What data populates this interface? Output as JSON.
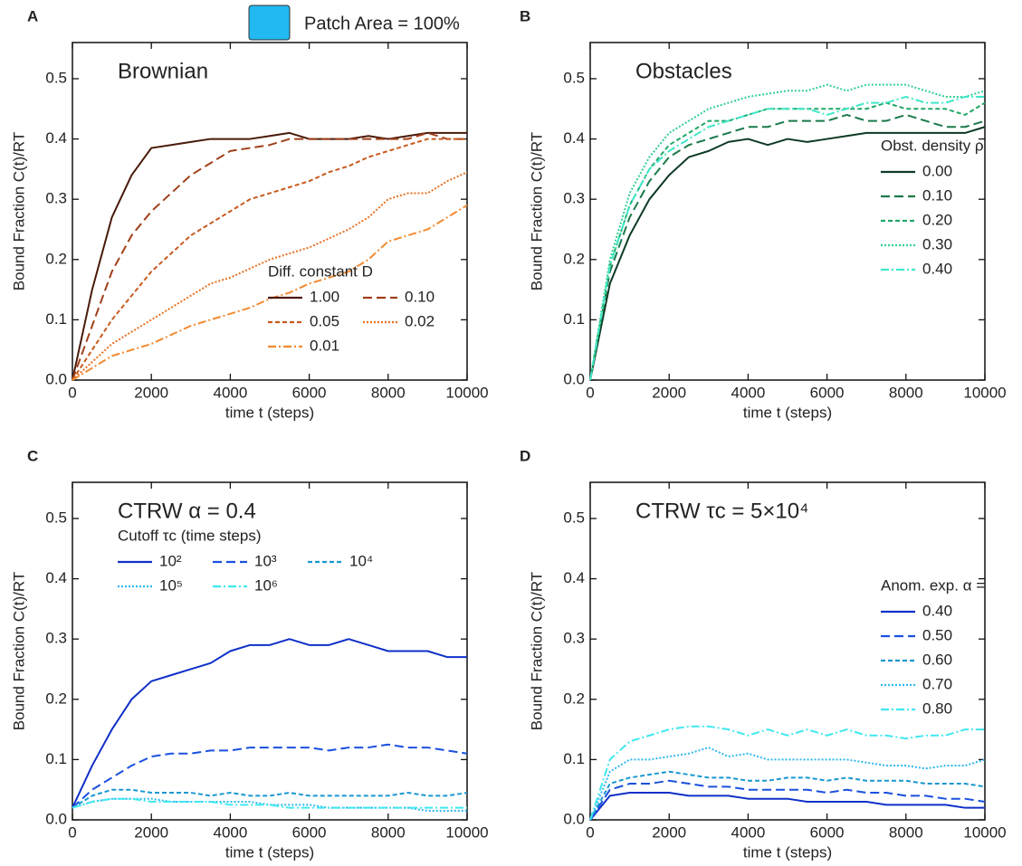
{
  "header": {
    "legend_label": "Patch Area = 100%",
    "legend_color": "#22b8f0"
  },
  "chart_data": [
    {
      "type": "line",
      "panel": "A",
      "title": "Brownian",
      "title_color": "#e8731e",
      "xlabel": "time t (steps)",
      "ylabel": "Bound Fraction C(t)/RT",
      "xlim": [
        0,
        10000
      ],
      "xticks": [
        0,
        2000,
        4000,
        6000,
        8000,
        10000
      ],
      "ylim": [
        0,
        0.56
      ],
      "yticks": [
        {
          "value": 0,
          "label": "0.0"
        },
        0.1,
        0.2,
        0.3,
        0.4,
        0.5
      ],
      "legend": "lower right",
      "legend_title": "Diff. constant D",
      "legend_columns": 2,
      "x": [
        0,
        500,
        1000,
        1500,
        2000,
        2500,
        3000,
        3500,
        4000,
        4500,
        5000,
        5500,
        6000,
        6500,
        7000,
        7500,
        8000,
        8500,
        9000,
        9500,
        10000
      ],
      "series": [
        {
          "name": "1.00",
          "color": "#4a1a0a",
          "dash": "solid",
          "values": [
            0,
            0.15,
            0.27,
            0.34,
            0.385,
            0.39,
            0.395,
            0.4,
            0.4,
            0.4,
            0.405,
            0.41,
            0.4,
            0.4,
            0.4,
            0.405,
            0.4,
            0.405,
            0.41,
            0.41,
            0.41
          ]
        },
        {
          "name": "0.10",
          "color": "#a0401a",
          "dash": "dashed",
          "values": [
            0,
            0.09,
            0.18,
            0.24,
            0.28,
            0.31,
            0.34,
            0.36,
            0.38,
            0.385,
            0.39,
            0.4,
            0.4,
            0.4,
            0.4,
            0.4,
            0.4,
            0.4,
            0.41,
            0.4,
            0.4
          ]
        },
        {
          "name": "0.05",
          "color": "#c85a1e",
          "dash": "short-dashed",
          "values": [
            0,
            0.05,
            0.1,
            0.14,
            0.18,
            0.21,
            0.24,
            0.26,
            0.28,
            0.3,
            0.31,
            0.32,
            0.33,
            0.345,
            0.355,
            0.37,
            0.38,
            0.39,
            0.4,
            0.4,
            0.4
          ]
        },
        {
          "name": "0.02",
          "color": "#e86f1e",
          "dash": "dotted",
          "values": [
            0,
            0.03,
            0.06,
            0.08,
            0.1,
            0.12,
            0.14,
            0.16,
            0.17,
            0.185,
            0.2,
            0.21,
            0.22,
            0.235,
            0.25,
            0.27,
            0.3,
            0.31,
            0.31,
            0.33,
            0.345
          ]
        },
        {
          "name": "0.01",
          "color": "#f28a30",
          "dash": "dash-dot",
          "values": [
            0,
            0.02,
            0.04,
            0.05,
            0.06,
            0.075,
            0.09,
            0.1,
            0.11,
            0.12,
            0.135,
            0.145,
            0.16,
            0.17,
            0.18,
            0.2,
            0.23,
            0.24,
            0.25,
            0.27,
            0.29
          ]
        }
      ]
    },
    {
      "type": "line",
      "panel": "B",
      "title": "Obstacles",
      "title_color": "#1a8a50",
      "xlabel": "time t (steps)",
      "ylabel": "Bound Fraction C(t)/RT",
      "xlim": [
        0,
        10000
      ],
      "xticks": [
        0,
        2000,
        4000,
        6000,
        8000,
        10000
      ],
      "ylim": [
        0,
        0.56
      ],
      "yticks": [
        {
          "value": 0,
          "label": "0.0"
        },
        0.1,
        0.2,
        0.3,
        0.4,
        0.5
      ],
      "legend": "center right",
      "legend_title": "Obst. density ρ",
      "legend_columns": 1,
      "x": [
        0,
        500,
        1000,
        1500,
        2000,
        2500,
        3000,
        3500,
        4000,
        4500,
        5000,
        5500,
        6000,
        6500,
        7000,
        7500,
        8000,
        8500,
        9000,
        9500,
        10000
      ],
      "series": [
        {
          "name": "0.00",
          "color": "#0d3a24",
          "dash": "solid",
          "values": [
            0,
            0.16,
            0.24,
            0.3,
            0.34,
            0.37,
            0.38,
            0.395,
            0.4,
            0.39,
            0.4,
            0.395,
            0.4,
            0.405,
            0.41,
            0.41,
            0.41,
            0.41,
            0.41,
            0.41,
            0.42
          ]
        },
        {
          "name": "0.10",
          "color": "#1a7a4a",
          "dash": "dashed",
          "values": [
            0,
            0.18,
            0.27,
            0.33,
            0.37,
            0.39,
            0.4,
            0.41,
            0.42,
            0.42,
            0.43,
            0.43,
            0.43,
            0.44,
            0.43,
            0.43,
            0.44,
            0.43,
            0.42,
            0.42,
            0.43
          ]
        },
        {
          "name": "0.20",
          "color": "#20a868",
          "dash": "short-dashed",
          "values": [
            0,
            0.19,
            0.29,
            0.35,
            0.39,
            0.41,
            0.43,
            0.43,
            0.44,
            0.45,
            0.45,
            0.45,
            0.45,
            0.45,
            0.45,
            0.46,
            0.45,
            0.45,
            0.45,
            0.44,
            0.46
          ]
        },
        {
          "name": "0.30",
          "color": "#30d090",
          "dash": "dotted",
          "values": [
            0,
            0.2,
            0.31,
            0.37,
            0.41,
            0.43,
            0.45,
            0.46,
            0.47,
            0.475,
            0.48,
            0.48,
            0.49,
            0.48,
            0.49,
            0.49,
            0.49,
            0.48,
            0.47,
            0.47,
            0.48
          ]
        },
        {
          "name": "0.40",
          "color": "#40e8c8",
          "dash": "dash-dot",
          "values": [
            0,
            0.19,
            0.29,
            0.35,
            0.38,
            0.4,
            0.42,
            0.43,
            0.44,
            0.45,
            0.45,
            0.45,
            0.44,
            0.45,
            0.46,
            0.46,
            0.47,
            0.46,
            0.46,
            0.47,
            0.47
          ]
        }
      ]
    },
    {
      "type": "line",
      "panel": "C",
      "title": "CTRW α = 0.4",
      "title_color": "#1a4ae0",
      "xlabel": "time t (steps)",
      "ylabel": "Bound Fraction C(t)/RT",
      "xlim": [
        0,
        10000
      ],
      "xticks": [
        0,
        2000,
        4000,
        6000,
        8000,
        10000
      ],
      "ylim": [
        0,
        0.56
      ],
      "yticks": [
        {
          "value": 0,
          "label": "0.0"
        },
        0.1,
        0.2,
        0.3,
        0.4,
        0.5
      ],
      "legend": "upper left",
      "legend_title": "Cutoff τc (time steps)",
      "legend_columns": 3,
      "x": [
        0,
        500,
        1000,
        1500,
        2000,
        2500,
        3000,
        3500,
        4000,
        4500,
        5000,
        5500,
        6000,
        6500,
        7000,
        7500,
        8000,
        8500,
        9000,
        9500,
        10000
      ],
      "series": [
        {
          "name": "10²",
          "color": "#1030c8",
          "dash": "solid",
          "values": [
            0.02,
            0.09,
            0.15,
            0.2,
            0.23,
            0.24,
            0.25,
            0.26,
            0.28,
            0.29,
            0.29,
            0.3,
            0.29,
            0.29,
            0.3,
            0.29,
            0.28,
            0.28,
            0.28,
            0.27,
            0.27
          ]
        },
        {
          "name": "10³",
          "color": "#1a50e0",
          "dash": "dashed",
          "values": [
            0.02,
            0.05,
            0.07,
            0.09,
            0.105,
            0.11,
            0.11,
            0.115,
            0.115,
            0.12,
            0.12,
            0.12,
            0.12,
            0.115,
            0.12,
            0.12,
            0.125,
            0.12,
            0.12,
            0.115,
            0.11
          ]
        },
        {
          "name": "10⁴",
          "color": "#1a98d0",
          "dash": "short-dashed",
          "values": [
            0.02,
            0.04,
            0.05,
            0.05,
            0.045,
            0.045,
            0.045,
            0.04,
            0.045,
            0.04,
            0.04,
            0.045,
            0.04,
            0.04,
            0.04,
            0.04,
            0.04,
            0.045,
            0.04,
            0.04,
            0.045
          ]
        },
        {
          "name": "10⁵",
          "color": "#30b8f0",
          "dash": "dotted",
          "values": [
            0.02,
            0.03,
            0.035,
            0.035,
            0.035,
            0.03,
            0.03,
            0.03,
            0.03,
            0.03,
            0.025,
            0.025,
            0.025,
            0.02,
            0.02,
            0.02,
            0.02,
            0.02,
            0.015,
            0.015,
            0.015
          ]
        },
        {
          "name": "10⁶",
          "color": "#40e8f0",
          "dash": "dash-dot",
          "values": [
            0.02,
            0.03,
            0.035,
            0.035,
            0.03,
            0.03,
            0.03,
            0.03,
            0.025,
            0.025,
            0.025,
            0.02,
            0.02,
            0.02,
            0.02,
            0.02,
            0.02,
            0.02,
            0.02,
            0.02,
            0.02
          ]
        }
      ]
    },
    {
      "type": "line",
      "panel": "D",
      "title": "CTRW τc = 5×10⁴",
      "title_color": "#1a4ae0",
      "xlabel": "time t (steps)",
      "ylabel": "Bound Fraction C(t)/RT",
      "xlim": [
        0,
        10000
      ],
      "xticks": [
        0,
        2000,
        4000,
        6000,
        8000,
        10000
      ],
      "ylim": [
        0,
        0.56
      ],
      "yticks": [
        {
          "value": 0,
          "label": "0.0"
        },
        0.1,
        0.2,
        0.3,
        0.4,
        0.5
      ],
      "legend": "center right",
      "legend_title": "Anom. exp. α =",
      "legend_columns": 1,
      "x": [
        0,
        500,
        1000,
        1500,
        2000,
        2500,
        3000,
        3500,
        4000,
        4500,
        5000,
        5500,
        6000,
        6500,
        7000,
        7500,
        8000,
        8500,
        9000,
        9500,
        10000
      ],
      "series": [
        {
          "name": "0.40",
          "color": "#1030c8",
          "dash": "solid",
          "values": [
            0,
            0.04,
            0.045,
            0.045,
            0.045,
            0.04,
            0.04,
            0.04,
            0.035,
            0.035,
            0.035,
            0.03,
            0.03,
            0.03,
            0.03,
            0.025,
            0.025,
            0.025,
            0.025,
            0.02,
            0.02
          ]
        },
        {
          "name": "0.50",
          "color": "#1a50e0",
          "dash": "dashed",
          "values": [
            0,
            0.05,
            0.06,
            0.06,
            0.065,
            0.06,
            0.055,
            0.055,
            0.05,
            0.05,
            0.05,
            0.05,
            0.045,
            0.05,
            0.045,
            0.045,
            0.04,
            0.04,
            0.035,
            0.035,
            0.03
          ]
        },
        {
          "name": "0.60",
          "color": "#1a98d0",
          "dash": "short-dashed",
          "values": [
            0,
            0.06,
            0.07,
            0.075,
            0.08,
            0.075,
            0.07,
            0.07,
            0.065,
            0.065,
            0.07,
            0.07,
            0.065,
            0.07,
            0.065,
            0.065,
            0.065,
            0.06,
            0.06,
            0.06,
            0.055
          ]
        },
        {
          "name": "0.70",
          "color": "#30b8f0",
          "dash": "dotted",
          "values": [
            0,
            0.08,
            0.1,
            0.1,
            0.105,
            0.11,
            0.12,
            0.105,
            0.11,
            0.1,
            0.1,
            0.1,
            0.1,
            0.1,
            0.095,
            0.09,
            0.09,
            0.085,
            0.09,
            0.09,
            0.1
          ]
        },
        {
          "name": "0.80",
          "color": "#40e8f0",
          "dash": "dash-dot",
          "values": [
            0,
            0.1,
            0.13,
            0.14,
            0.15,
            0.155,
            0.155,
            0.15,
            0.14,
            0.15,
            0.14,
            0.15,
            0.14,
            0.15,
            0.14,
            0.14,
            0.135,
            0.14,
            0.14,
            0.15,
            0.15
          ]
        }
      ]
    }
  ]
}
